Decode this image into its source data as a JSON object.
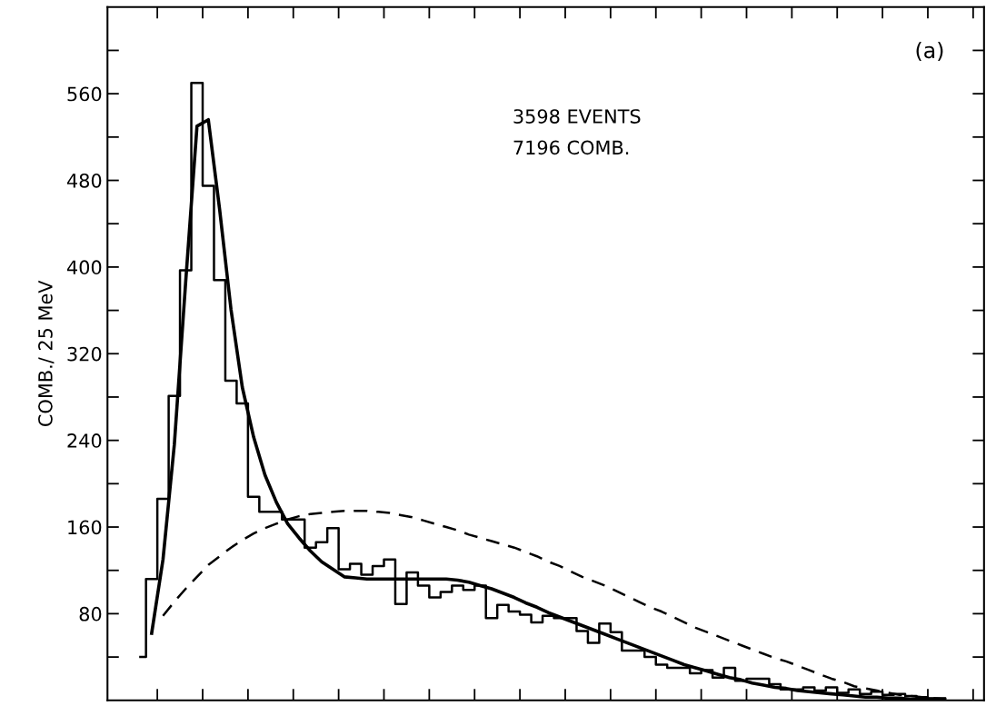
{
  "chart_data": {
    "type": "step",
    "ylabel": "COMB./ 25 MeV",
    "annotations": [
      "(a)",
      "3598 EVENTS",
      "7196 COMB."
    ],
    "categories": [
      null,
      null,
      null,
      null,
      null,
      null,
      null,
      null,
      null,
      null,
      null,
      null,
      null,
      null,
      null,
      null,
      null,
      null,
      null,
      null,
      null,
      null,
      null,
      null,
      null,
      null,
      null,
      null,
      null,
      null,
      null,
      null,
      null,
      null,
      null,
      null,
      null,
      null,
      null,
      null,
      null,
      null,
      null,
      null,
      null,
      null,
      null,
      null,
      null,
      null,
      null,
      null,
      null,
      null,
      null,
      null,
      null,
      null,
      null,
      null,
      null,
      null,
      null,
      null,
      null,
      null,
      null,
      null,
      null,
      null,
      null,
      null
    ],
    "ylim": [
      0,
      640
    ],
    "yticks": [
      80,
      160,
      240,
      320,
      400,
      480,
      560
    ],
    "grid": false,
    "series": [
      {
        "color": "#000000",
        "values": [
          40,
          112,
          186,
          281,
          397,
          570,
          475,
          388,
          295,
          274,
          188,
          174,
          174,
          167,
          167,
          141,
          146,
          159,
          121,
          126,
          116,
          124,
          130,
          89,
          118,
          106,
          95,
          100,
          106,
          102,
          106,
          76,
          88,
          82,
          79,
          72,
          78,
          76,
          76,
          64,
          53,
          71,
          63,
          46,
          46,
          40,
          33,
          30,
          30,
          25,
          28,
          21,
          30,
          18,
          20,
          20,
          15,
          10,
          10,
          12,
          9,
          12,
          7,
          10,
          6,
          8,
          5,
          6,
          4,
          3,
          2,
          2
        ]
      },
      {
        "type": "line",
        "line_style": "solid",
        "color": "#000000",
        "values": [
          null,
          62,
          130,
          236,
          386,
          530,
          536,
          453,
          361,
          289,
          243,
          208,
          183,
          163,
          150,
          138,
          128,
          121,
          114,
          113,
          112,
          112,
          112,
          112,
          112,
          112,
          112,
          112,
          111,
          109,
          106,
          103,
          99,
          95,
          90,
          86,
          81,
          77,
          73,
          69,
          65,
          61,
          57,
          53,
          49,
          45,
          41,
          37,
          33,
          30,
          27,
          24,
          21,
          19,
          16,
          14,
          12,
          11,
          9,
          8,
          7,
          6,
          5,
          4,
          3,
          3,
          2,
          2,
          1,
          1,
          1,
          1
        ]
      },
      {
        "type": "line",
        "line_style": "dashed",
        "color": "#000000",
        "values": [
          null,
          null,
          78,
          91,
          103,
          114,
          125,
          133,
          141,
          148,
          154,
          159,
          163,
          167,
          170,
          172,
          173,
          174,
          175,
          175,
          175,
          174,
          173,
          171,
          169,
          166,
          163,
          160,
          157,
          153,
          150,
          147,
          144,
          141,
          137,
          133,
          128,
          124,
          119,
          114,
          110,
          106,
          101,
          96,
          91,
          86,
          82,
          77,
          72,
          67,
          63,
          59,
          55,
          51,
          47,
          43,
          39,
          36,
          32,
          28,
          24,
          20,
          17,
          13,
          11,
          9,
          7,
          5,
          4,
          3,
          2,
          1
        ]
      }
    ]
  }
}
